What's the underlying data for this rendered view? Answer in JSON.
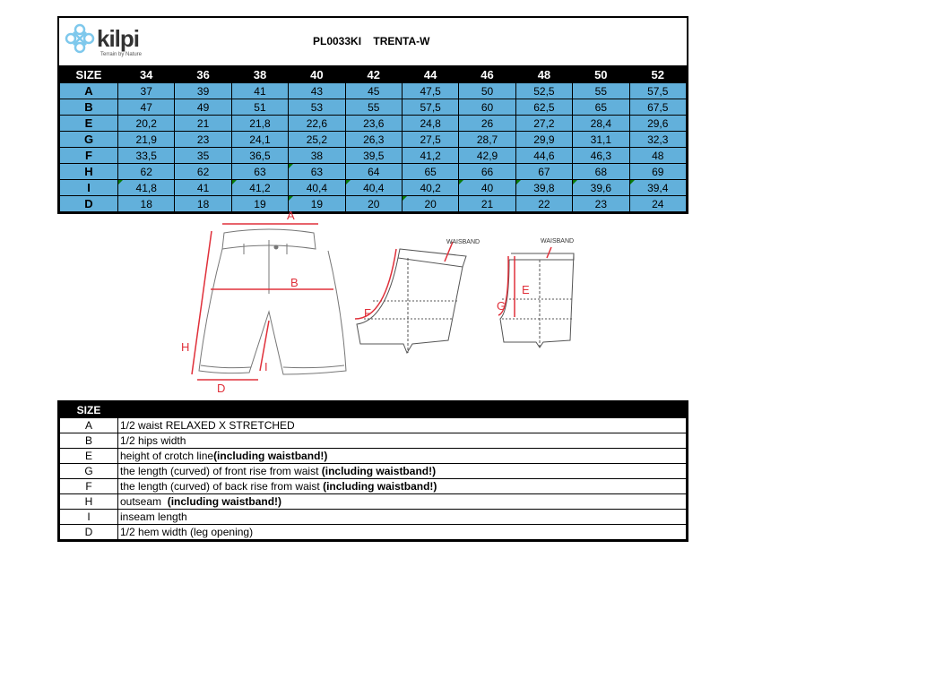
{
  "header": {
    "brand": "kilpi",
    "tagline": "Terrain by Nature",
    "title": "PL0033KI    TRENTA-W",
    "brand_color": "#7ec8ec"
  },
  "size_table": {
    "header_label": "SIZE",
    "sizes": [
      "34",
      "36",
      "38",
      "40",
      "42",
      "44",
      "46",
      "48",
      "50",
      "52"
    ],
    "cell_color": "#62b0db",
    "rows": [
      {
        "label": "A",
        "values": [
          "37",
          "39",
          "41",
          "43",
          "45",
          "47,5",
          "50",
          "52,5",
          "55",
          "57,5"
        ],
        "flags": []
      },
      {
        "label": "B",
        "values": [
          "47",
          "49",
          "51",
          "53",
          "55",
          "57,5",
          "60",
          "62,5",
          "65",
          "67,5"
        ],
        "flags": []
      },
      {
        "label": "E",
        "values": [
          "20,2",
          "21",
          "21,8",
          "22,6",
          "23,6",
          "24,8",
          "26",
          "27,2",
          "28,4",
          "29,6"
        ],
        "flags": []
      },
      {
        "label": "G",
        "values": [
          "21,9",
          "23",
          "24,1",
          "25,2",
          "26,3",
          "27,5",
          "28,7",
          "29,9",
          "31,1",
          "32,3"
        ],
        "flags": []
      },
      {
        "label": "F",
        "values": [
          "33,5",
          "35",
          "36,5",
          "38",
          "39,5",
          "41,2",
          "42,9",
          "44,6",
          "46,3",
          "48"
        ],
        "flags": []
      },
      {
        "label": "H",
        "values": [
          "62",
          "62",
          "63",
          "63",
          "64",
          "65",
          "66",
          "67",
          "68",
          "69"
        ],
        "flags": [
          3
        ]
      },
      {
        "label": "I",
        "values": [
          "41,8",
          "41",
          "41,2",
          "40,4",
          "40,4",
          "40,2",
          "40",
          "39,8",
          "39,6",
          "39,4"
        ],
        "flags": [
          0,
          2,
          4,
          6,
          7,
          8,
          9
        ]
      },
      {
        "label": "D",
        "values": [
          "18",
          "18",
          "19",
          "19",
          "20",
          "20",
          "21",
          "22",
          "23",
          "24"
        ],
        "flags": [
          3,
          5
        ]
      }
    ]
  },
  "diagram": {
    "labels": [
      "A",
      "B",
      "H",
      "I",
      "D",
      "F",
      "G",
      "E"
    ],
    "waistband_label_1": "WAISBAND",
    "waistband_label_2": "WAISBAND",
    "accent_color": "#e0303a"
  },
  "legend": {
    "header_label": "SIZE",
    "rows": [
      {
        "key": "A",
        "text": "1/2 waist RELAXED X STRETCHED",
        "bold": ""
      },
      {
        "key": "B",
        "text": "1/2 hips width",
        "bold": ""
      },
      {
        "key": "E",
        "text": "height of crotch line",
        "bold": "(including waistband!)"
      },
      {
        "key": "G",
        "text": "the length (curved) of front rise from waist ",
        "bold": "(including waistband!)"
      },
      {
        "key": "F",
        "text": "the length (curved) of back rise from waist ",
        "bold": "(including waistband!)"
      },
      {
        "key": "H",
        "text": "outseam  ",
        "bold": "(including waistband!)"
      },
      {
        "key": "I",
        "text": "inseam length",
        "bold": ""
      },
      {
        "key": "D",
        "text": "1/2 hem width (leg opening)",
        "bold": ""
      }
    ]
  }
}
